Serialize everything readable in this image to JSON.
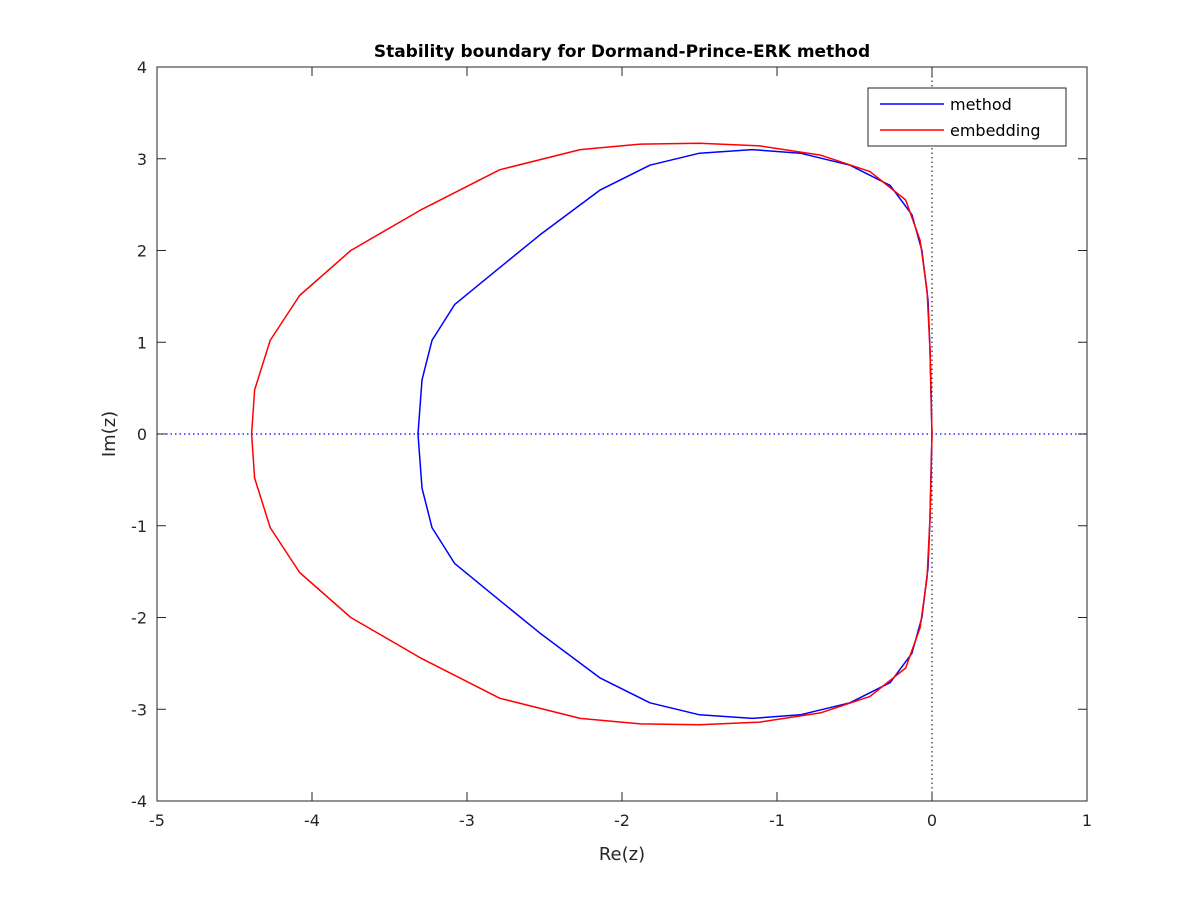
{
  "chart_data": {
    "type": "line",
    "title": "Stability boundary for Dormand-Prince-ERK method",
    "xlabel": "Re(z)",
    "ylabel": "Im(z)",
    "xlim": [
      -5,
      1
    ],
    "ylim": [
      -4,
      4
    ],
    "xticks": [
      "-5",
      "-4",
      "-3",
      "-2",
      "-1",
      "0",
      "1"
    ],
    "yticks": [
      "-4",
      "-3",
      "-2",
      "-1",
      "0",
      "1",
      "2",
      "3",
      "4"
    ],
    "xtick_values": [
      -5,
      -4,
      -3,
      -2,
      -1,
      0,
      1
    ],
    "ytick_values": [
      -4,
      -3,
      -2,
      -1,
      0,
      1,
      2,
      3,
      4
    ],
    "grid": false,
    "legend_position": "top-right",
    "reference_lines": {
      "horizontal_y": 0,
      "vertical_x": 0,
      "style": "dotted",
      "color": "#0000ff"
    },
    "series": [
      {
        "name": "method",
        "color": "#0000ff",
        "points": [
          [
            0,
            0
          ],
          [
            -0.006,
            0.37
          ],
          [
            -0.013,
            0.92
          ],
          [
            -0.026,
            1.46
          ],
          [
            -0.065,
            2.0
          ],
          [
            -0.13,
            2.39
          ],
          [
            -0.27,
            2.71
          ],
          [
            -0.53,
            2.93
          ],
          [
            -0.85,
            3.06
          ],
          [
            -1.16,
            3.1
          ],
          [
            -1.5,
            3.06
          ],
          [
            -1.82,
            2.93
          ],
          [
            -2.14,
            2.66
          ],
          [
            -2.53,
            2.17
          ],
          [
            -2.85,
            1.73
          ],
          [
            -3.08,
            1.41
          ],
          [
            -3.226,
            1.02
          ],
          [
            -3.29,
            0.59
          ],
          [
            -3.316,
            0
          ],
          [
            -3.29,
            -0.59
          ],
          [
            -3.226,
            -1.02
          ],
          [
            -3.08,
            -1.41
          ],
          [
            -2.85,
            -1.73
          ],
          [
            -2.53,
            -2.17
          ],
          [
            -2.14,
            -2.66
          ],
          [
            -1.82,
            -2.93
          ],
          [
            -1.5,
            -3.06
          ],
          [
            -1.16,
            -3.1
          ],
          [
            -0.85,
            -3.06
          ],
          [
            -0.53,
            -2.93
          ],
          [
            -0.27,
            -2.71
          ],
          [
            -0.13,
            -2.39
          ],
          [
            -0.065,
            -2.0
          ],
          [
            -0.026,
            -1.46
          ],
          [
            -0.013,
            -0.92
          ],
          [
            -0.006,
            -0.37
          ],
          [
            0,
            0
          ]
        ]
      },
      {
        "name": "embedding",
        "color": "#ff0000",
        "points": [
          [
            0,
            0
          ],
          [
            -0.005,
            0.4
          ],
          [
            -0.013,
            0.92
          ],
          [
            -0.032,
            1.57
          ],
          [
            -0.077,
            2.11
          ],
          [
            -0.17,
            2.55
          ],
          [
            -0.4,
            2.86
          ],
          [
            -0.72,
            3.04
          ],
          [
            -1.11,
            3.14
          ],
          [
            -1.5,
            3.17
          ],
          [
            -1.88,
            3.16
          ],
          [
            -2.27,
            3.1
          ],
          [
            -2.79,
            2.88
          ],
          [
            -3.3,
            2.44
          ],
          [
            -3.75,
            2.0
          ],
          [
            -4.08,
            1.51
          ],
          [
            -4.27,
            1.02
          ],
          [
            -4.37,
            0.48
          ],
          [
            -4.39,
            0
          ],
          [
            -4.37,
            -0.48
          ],
          [
            -4.27,
            -1.02
          ],
          [
            -4.08,
            -1.51
          ],
          [
            -3.75,
            -2.0
          ],
          [
            -3.3,
            -2.44
          ],
          [
            -2.79,
            -2.88
          ],
          [
            -2.27,
            -3.1
          ],
          [
            -1.88,
            -3.16
          ],
          [
            -1.5,
            -3.17
          ],
          [
            -1.11,
            -3.14
          ],
          [
            -0.72,
            -3.04
          ],
          [
            -0.4,
            -2.86
          ],
          [
            -0.17,
            -2.55
          ],
          [
            -0.077,
            -2.11
          ],
          [
            -0.032,
            -1.57
          ],
          [
            -0.013,
            -0.92
          ],
          [
            -0.005,
            -0.4
          ],
          [
            0,
            0
          ]
        ]
      }
    ]
  }
}
